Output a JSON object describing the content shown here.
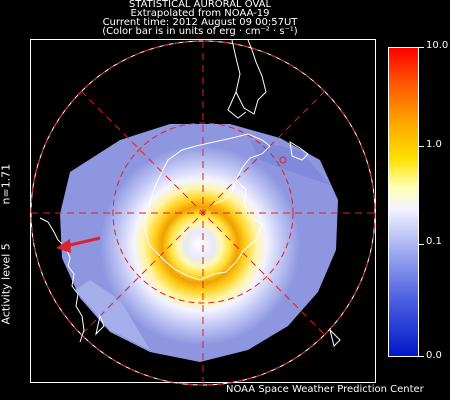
{
  "header": {
    "title": "STATISTICAL AURORAL OVAL",
    "source": "Extrapolated from NOAA-19",
    "current_time": "Current time: 2012 August 09 00:57UT",
    "units_note": "(Color bar is in units of erg · cm⁻² · s⁻¹)"
  },
  "side_labels": {
    "n_value": "n=1.71",
    "activity": "Activity level 5"
  },
  "colorbar": {
    "ticks": [
      "10.0",
      "1.0",
      "0.1",
      "0.0"
    ],
    "colors": [
      "#ff0000",
      "#ffb000",
      "#ffe000",
      "#f4f4ff",
      "#9aa6f0",
      "#0018c8"
    ]
  },
  "map": {
    "sun_arrow_color": "#e0202a",
    "grid_color": "#e02020",
    "oval_peak_color": "#f0a000",
    "coastline_color": "#ffffff"
  },
  "footer": {
    "credit": "NOAA Space Weather Prediction Center"
  }
}
